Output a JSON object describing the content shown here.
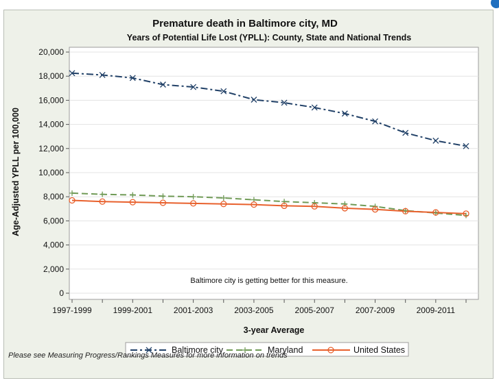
{
  "footnote": "Please see Measuring Progress/Rankings Measures for more information on trends",
  "badge_color": "#1f6fbf",
  "chart_data": {
    "type": "line",
    "title": "Premature death in Baltimore city, MD",
    "subtitle": "Years of Potential Life Lost (YPLL): County, State and National Trends",
    "xlabel": "3-year Average",
    "ylabel": "Age-Adjusted YPLL per 100,000",
    "ylim": [
      0,
      20000
    ],
    "yticks": [
      0,
      2000,
      4000,
      6000,
      8000,
      10000,
      12000,
      14000,
      16000,
      18000,
      20000
    ],
    "ytick_labels": [
      "0",
      "2,000",
      "4,000",
      "6,000",
      "8,000",
      "10,000",
      "12,000",
      "14,000",
      "16,000",
      "18,000",
      "20,000"
    ],
    "x": [
      "1997-1999",
      "1998-2000",
      "1999-2001",
      "2000-2002",
      "2001-2003",
      "2002-2004",
      "2003-2005",
      "2004-2006",
      "2005-2007",
      "2006-2008",
      "2007-2009",
      "2008-2010",
      "2009-2011",
      "2010-2012"
    ],
    "xtick_labels": [
      "1997-1999",
      "1999-2001",
      "2001-2003",
      "2003-2005",
      "2005-2007",
      "2007-2009",
      "2009-2011"
    ],
    "annotation": "Baltimore city is getting better for this measure.",
    "grid": "horizontal",
    "legend_position": "bottom",
    "series": [
      {
        "name": "Baltimore city",
        "color": "#1f3f66",
        "marker": "x",
        "dash": "dashdot",
        "values": [
          18250,
          18100,
          17850,
          17300,
          17100,
          16750,
          16050,
          15800,
          15400,
          14900,
          14250,
          13300,
          12650,
          12200
        ]
      },
      {
        "name": "Maryland",
        "color": "#6f9a55",
        "marker": "plus",
        "dash": "dash",
        "values": [
          8300,
          8200,
          8150,
          8050,
          8000,
          7900,
          7750,
          7600,
          7500,
          7400,
          7200,
          6850,
          6650,
          6450
        ]
      },
      {
        "name": "United States",
        "color": "#e8602c",
        "marker": "circle",
        "dash": "solid",
        "values": [
          7700,
          7600,
          7550,
          7500,
          7450,
          7400,
          7350,
          7250,
          7200,
          7050,
          6950,
          6800,
          6700,
          6600
        ]
      }
    ]
  }
}
